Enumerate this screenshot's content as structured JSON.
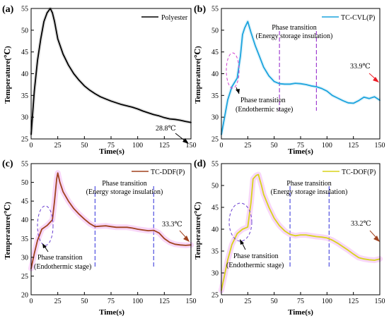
{
  "chart_data": [
    {
      "panel_label": "(a)",
      "type": "line",
      "xlabel": "Time(s)",
      "ylabel": "Temperature(℃)",
      "xlim": [
        0,
        150
      ],
      "ylim": [
        25,
        55
      ],
      "xticks": [
        0,
        25,
        50,
        75,
        100,
        125,
        150
      ],
      "yticks": [
        25,
        30,
        35,
        40,
        45,
        50,
        55
      ],
      "legend_position": "top-right",
      "series": [
        {
          "name": "Polyester",
          "color": "#000000",
          "x": [
            0,
            3,
            6,
            9,
            12,
            15,
            18,
            20,
            22,
            25,
            30,
            35,
            40,
            45,
            50,
            55,
            60,
            65,
            70,
            75,
            80,
            85,
            90,
            95,
            100,
            105,
            110,
            115,
            120,
            125,
            130,
            135,
            140,
            145,
            150
          ],
          "y": [
            26.0,
            36.0,
            43.0,
            48.0,
            52.0,
            54.0,
            55.0,
            54.0,
            52.0,
            48.0,
            44.5,
            42.0,
            40.0,
            38.5,
            37.2,
            36.2,
            35.4,
            34.7,
            34.2,
            33.7,
            33.3,
            32.9,
            32.6,
            32.3,
            31.9,
            31.4,
            31.0,
            30.6,
            30.3,
            29.9,
            29.6,
            29.5,
            29.3,
            29.0,
            28.8
          ]
        }
      ],
      "annotations": [
        {
          "text": "28.8℃",
          "x": 150,
          "y": 28.8,
          "arrow_color": "#000000"
        }
      ]
    },
    {
      "panel_label": "(b)",
      "type": "line",
      "xlabel": "Time(s)",
      "ylabel": "Temperature(℃)",
      "xlim": [
        0,
        150
      ],
      "ylim": [
        25,
        55
      ],
      "xticks": [
        0,
        25,
        50,
        75,
        100,
        125,
        150
      ],
      "yticks": [
        25,
        30,
        35,
        40,
        45,
        50,
        55
      ],
      "legend_position": "top-right",
      "series": [
        {
          "name": "TC-CVL(P)",
          "color": "#1aa3dd",
          "x": [
            0,
            3,
            6,
            10,
            15,
            18,
            20,
            22,
            25,
            28,
            32,
            36,
            40,
            45,
            50,
            55,
            60,
            65,
            70,
            75,
            80,
            85,
            90,
            95,
            100,
            105,
            110,
            115,
            120,
            125,
            130,
            135,
            140,
            145,
            150
          ],
          "y": [
            26.0,
            30.0,
            34.0,
            37.0,
            39.0,
            44.0,
            49.0,
            50.5,
            52.0,
            49.5,
            46.5,
            44.0,
            41.5,
            39.5,
            38.2,
            37.7,
            37.6,
            37.6,
            37.8,
            37.7,
            37.5,
            37.2,
            37.0,
            36.6,
            36.0,
            35.0,
            34.4,
            33.8,
            33.3,
            33.2,
            33.8,
            34.6,
            34.3,
            34.7,
            33.9
          ]
        }
      ],
      "annotations": [
        {
          "text": "Phase transition",
          "text2": "(Endothermic stage)"
        },
        {
          "text": "Phase transition",
          "text2": "(Energy storage insulation)"
        },
        {
          "text": "33.9℃",
          "x": 150,
          "y": 33.9,
          "arrow_color": "#ee1b24"
        }
      ],
      "marker_lines_x": [
        55,
        90
      ],
      "marker_line_color": "#a040d0"
    },
    {
      "panel_label": "(c)",
      "type": "line",
      "xlabel": "Time(s)",
      "ylabel": "Temperature(℃)",
      "xlim": [
        0,
        150
      ],
      "ylim": [
        20,
        55
      ],
      "xticks": [
        0,
        25,
        50,
        75,
        100,
        125,
        150
      ],
      "yticks": [
        20,
        25,
        30,
        35,
        40,
        45,
        50,
        55
      ],
      "legend_position": "top-right",
      "series": [
        {
          "name": "TC-DDF(P)",
          "color": "#a0421e",
          "x": [
            0,
            3,
            6,
            10,
            15,
            20,
            22,
            24,
            25,
            27,
            30,
            35,
            40,
            45,
            50,
            55,
            60,
            65,
            70,
            75,
            80,
            85,
            90,
            95,
            100,
            105,
            110,
            115,
            120,
            125,
            130,
            135,
            140,
            145,
            150
          ],
          "y": [
            27.0,
            31.0,
            34.5,
            37.5,
            38.5,
            40.0,
            45.0,
            51.0,
            52.5,
            50.0,
            47.5,
            45.0,
            43.0,
            41.5,
            40.2,
            39.0,
            38.2,
            38.3,
            38.4,
            38.2,
            38.0,
            38.0,
            38.0,
            37.8,
            37.5,
            37.3,
            37.1,
            37.2,
            36.5,
            35.0,
            34.0,
            33.5,
            33.3,
            33.2,
            33.3
          ]
        }
      ],
      "annotations": [
        {
          "text": "Phase transition",
          "text2": "(Endothermic stage)"
        },
        {
          "text": "Phase transition",
          "text2": "(Energy storage insulation)"
        },
        {
          "text": "33.3℃",
          "x": 150,
          "y": 33.3,
          "arrow_color": "#a0421e"
        }
      ],
      "marker_lines_x": [
        60,
        115
      ],
      "marker_line_color": "#5050e0"
    },
    {
      "panel_label": "(d)",
      "type": "line",
      "xlabel": "Time(s)",
      "ylabel": "Temperature(℃)",
      "xlim": [
        0,
        150
      ],
      "ylim": [
        25,
        55
      ],
      "xticks": [
        0,
        25,
        50,
        75,
        100,
        125,
        150
      ],
      "yticks": [
        25,
        30,
        35,
        40,
        45,
        50,
        55
      ],
      "legend_position": "top-right",
      "series": [
        {
          "name": "TC-DOF(P)",
          "color": "#d8d41a",
          "x": [
            0,
            3,
            6,
            10,
            15,
            20,
            25,
            28,
            30,
            33,
            35,
            38,
            40,
            45,
            50,
            55,
            60,
            65,
            70,
            75,
            80,
            85,
            90,
            95,
            100,
            105,
            110,
            115,
            120,
            125,
            130,
            135,
            140,
            145,
            150
          ],
          "y": [
            26.0,
            29.5,
            33.0,
            36.5,
            39.0,
            40.0,
            40.5,
            46.0,
            51.5,
            52.3,
            52.5,
            50.0,
            48.0,
            45.0,
            42.5,
            40.8,
            39.6,
            38.8,
            38.5,
            38.7,
            38.7,
            38.5,
            38.3,
            38.2,
            38.0,
            37.5,
            36.8,
            36.0,
            35.2,
            34.3,
            33.5,
            33.2,
            33.0,
            32.9,
            33.2
          ]
        }
      ],
      "annotations": [
        {
          "text": "Phase transition",
          "text2": "(Endothermic stage)"
        },
        {
          "text": "Phase transition",
          "text2": "(Energy storage insulation)"
        },
        {
          "text": "33.2℃",
          "x": 150,
          "y": 33.2,
          "arrow_color": "#a0421e"
        }
      ],
      "marker_lines_x": [
        65,
        102
      ],
      "marker_line_color": "#5050e0"
    }
  ]
}
